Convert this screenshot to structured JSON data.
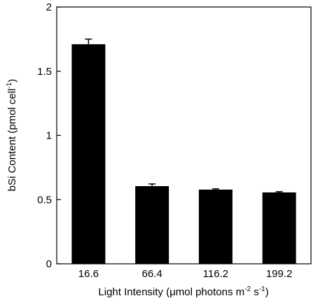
{
  "chart_data": {
    "type": "bar",
    "categories": [
      "16.6",
      "66.4",
      "116.2",
      "199.2"
    ],
    "values": [
      1.71,
      0.605,
      0.578,
      0.556
    ],
    "errors": [
      0.04,
      0.017,
      0.006,
      0.006
    ],
    "ylim": [
      0,
      2
    ],
    "yticks": [
      0,
      0.5,
      1,
      1.5,
      2
    ],
    "ytick_labels": [
      "0",
      "0.5",
      "1",
      "1.5",
      "2"
    ],
    "xlabel": {
      "prefix": "Light Intensity (",
      "mu": "μ",
      "middle": "mol photons m",
      "sup1": "-2",
      "mid2": " s",
      "sup2": "-1",
      "suffix": ")"
    },
    "ylabel": {
      "text": "bSi Content (pmol cell",
      "sup": "-1",
      "suffix": ")"
    },
    "grid": false,
    "bar_color": "#000000"
  }
}
